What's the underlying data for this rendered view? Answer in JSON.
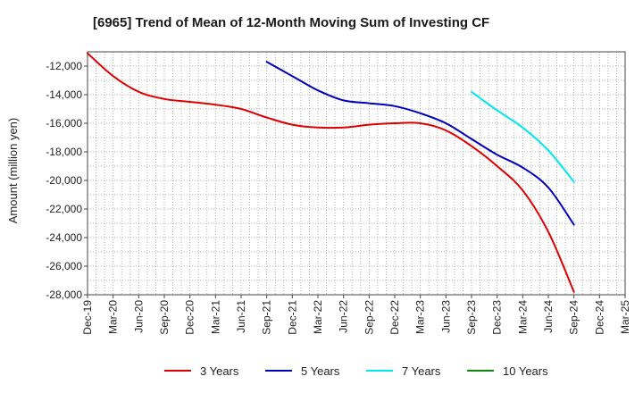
{
  "chart_data": {
    "type": "line",
    "title": "[6965]  Trend of Mean of 12-Month Moving Sum of Investing CF",
    "xlabel": "",
    "ylabel": "Amount (million yen)",
    "ylim": [
      -28000,
      -11000
    ],
    "yticks": [
      -12000,
      -14000,
      -16000,
      -18000,
      -20000,
      -22000,
      -24000,
      -26000,
      -28000
    ],
    "ytick_labels": [
      "-12,000",
      "-14,000",
      "-16,000",
      "-18,000",
      "-20,000",
      "-22,000",
      "-24,000",
      "-26,000",
      "-28,000"
    ],
    "categories": [
      "Dec-19",
      "Mar-20",
      "Jun-20",
      "Sep-20",
      "Dec-20",
      "Mar-21",
      "Jun-21",
      "Sep-21",
      "Dec-21",
      "Mar-22",
      "Jun-22",
      "Sep-22",
      "Dec-22",
      "Mar-23",
      "Jun-23",
      "Sep-23",
      "Dec-23",
      "Mar-24",
      "Jun-24",
      "Sep-24",
      "Dec-24",
      "Mar-25"
    ],
    "grid": true,
    "legend_position": "bottom",
    "series": [
      {
        "name": "3 Years",
        "color": "#dd0000",
        "values": [
          -11100,
          -12700,
          -13800,
          -14300,
          -14500,
          -14700,
          -15000,
          -15600,
          -16100,
          -16300,
          -16300,
          -16100,
          -16000,
          -16000,
          -16500,
          -17600,
          -19000,
          -20700,
          -23600,
          -27800,
          null,
          null
        ]
      },
      {
        "name": "5 Years",
        "color": "#0000bb",
        "values": [
          null,
          null,
          null,
          null,
          null,
          null,
          null,
          -11700,
          -12700,
          -13700,
          -14400,
          -14600,
          -14800,
          -15300,
          -16000,
          -17100,
          -18200,
          -19100,
          -20500,
          -23100,
          null,
          null
        ]
      },
      {
        "name": "7 Years",
        "color": "#00e5ee",
        "values": [
          null,
          null,
          null,
          null,
          null,
          null,
          null,
          null,
          null,
          null,
          null,
          null,
          null,
          null,
          null,
          -13800,
          -15100,
          -16300,
          -17900,
          -20100,
          null,
          null
        ]
      },
      {
        "name": "10 Years",
        "color": "#118811",
        "values": [
          null,
          null,
          null,
          null,
          null,
          null,
          null,
          null,
          null,
          null,
          null,
          null,
          null,
          null,
          null,
          null,
          null,
          null,
          null,
          null,
          null,
          null
        ]
      }
    ]
  }
}
